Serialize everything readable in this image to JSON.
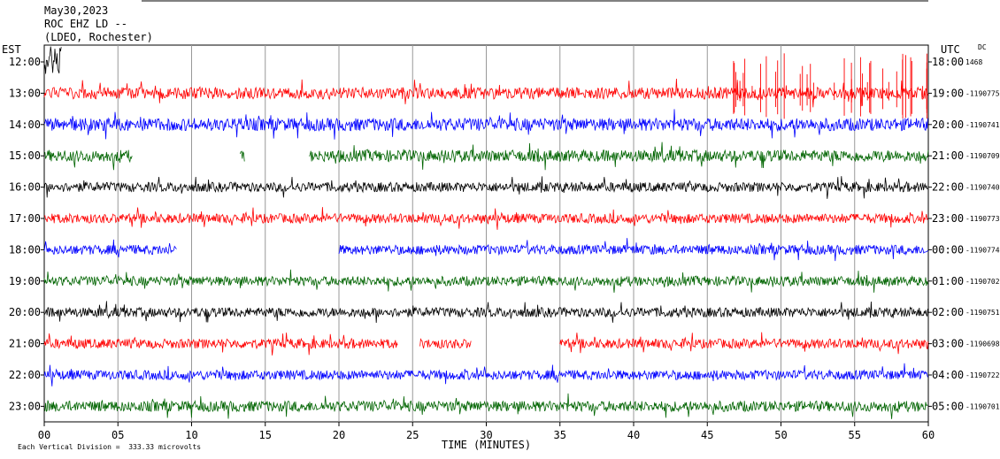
{
  "header": {
    "date": "May30,2023",
    "station": "ROC EHZ LD --",
    "network": "(LDEO, Rochester)"
  },
  "left_tz": "EST",
  "right_tz": "UTC",
  "dc_label": "DC",
  "footer": {
    "scale_note": "Each Vertical Division =  333.33 microvolts"
  },
  "chart_data": {
    "type": "line",
    "title": "",
    "xlabel": "TIME (MINUTES)",
    "ylabel": "",
    "xlim": [
      0,
      60
    ],
    "x_ticks": [
      "00",
      "05",
      "10",
      "15",
      "20",
      "25",
      "30",
      "35",
      "40",
      "45",
      "50",
      "55",
      "60"
    ],
    "grid": true,
    "colors": [
      "#000000",
      "#ff0000",
      "#0000ff",
      "#006400"
    ],
    "rows": [
      {
        "est": "12:00",
        "utc": "18:00",
        "dc": "1468",
        "color": "#000000",
        "amplitude": 3,
        "segments": [
          [
            0,
            1.2
          ]
        ]
      },
      {
        "est": "13:00",
        "utc": "19:00",
        "dc": "-1190775",
        "color": "#ff0000",
        "amplitude": 1.1,
        "segments": [
          [
            0,
            60
          ]
        ]
      },
      {
        "est": "14:00",
        "utc": "20:00",
        "dc": "-1190741",
        "color": "#0000ff",
        "amplitude": 1.2,
        "segments": [
          [
            0,
            60
          ]
        ]
      },
      {
        "est": "15:00",
        "utc": "21:00",
        "dc": "-1190709",
        "color": "#006400",
        "amplitude": 1.1,
        "segments": [
          [
            0,
            6
          ],
          [
            13.3,
            13.6
          ],
          [
            18,
            60
          ]
        ]
      },
      {
        "est": "16:00",
        "utc": "22:00",
        "dc": "-1190740",
        "color": "#000000",
        "amplitude": 0.9,
        "segments": [
          [
            0,
            60
          ]
        ]
      },
      {
        "est": "17:00",
        "utc": "23:00",
        "dc": "-1190773",
        "color": "#ff0000",
        "amplitude": 0.9,
        "segments": [
          [
            0,
            60
          ]
        ]
      },
      {
        "est": "18:00",
        "utc": "00:00",
        "dc": "-1190774",
        "color": "#0000ff",
        "amplitude": 0.9,
        "segments": [
          [
            0,
            9
          ],
          [
            20,
            60
          ]
        ]
      },
      {
        "est": "19:00",
        "utc": "01:00",
        "dc": "-1190702",
        "color": "#006400",
        "amplitude": 0.9,
        "segments": [
          [
            0,
            60
          ]
        ]
      },
      {
        "est": "20:00",
        "utc": "02:00",
        "dc": "-1190751",
        "color": "#000000",
        "amplitude": 0.9,
        "segments": [
          [
            0,
            60
          ]
        ]
      },
      {
        "est": "21:00",
        "utc": "03:00",
        "dc": "-1190698",
        "color": "#ff0000",
        "amplitude": 0.9,
        "segments": [
          [
            0,
            24
          ],
          [
            25.5,
            29
          ],
          [
            35,
            60
          ]
        ]
      },
      {
        "est": "22:00",
        "utc": "04:00",
        "dc": "-1190722",
        "color": "#0000ff",
        "amplitude": 0.9,
        "segments": [
          [
            0,
            60
          ]
        ]
      },
      {
        "est": "23:00",
        "utc": "05:00",
        "dc": "-1190701",
        "color": "#006400",
        "amplitude": 1.0,
        "segments": [
          [
            0,
            60
          ]
        ]
      }
    ]
  }
}
